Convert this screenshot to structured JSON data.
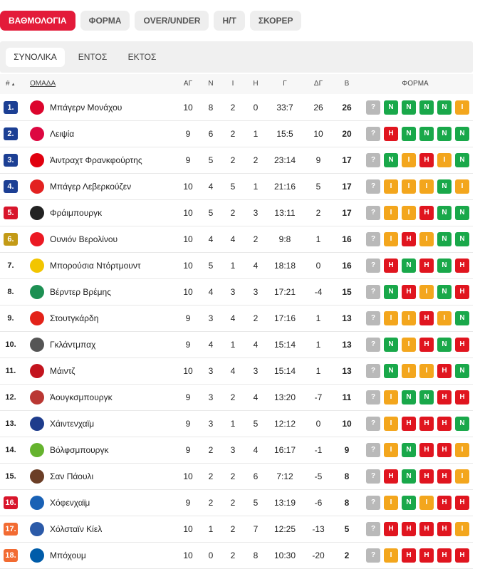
{
  "top_tabs": [
    "ΒΑΘΜΟΛΟΓΙΑ",
    "ΦΟΡΜΑ",
    "OVER/UNDER",
    "H/T",
    "ΣΚΟΡΕΡ"
  ],
  "sub_tabs": [
    "ΣΥΝΟΛΙΚΑ",
    "ΕΝΤΟΣ",
    "ΕΚΤΟΣ"
  ],
  "columns": {
    "pos": "#",
    "team": "ΟΜΑΔΑ",
    "played": "ΑΓ",
    "won": "Ν",
    "draw": "Ι",
    "lost": "Η",
    "goals": "Γ",
    "diff": "ΔΓ",
    "points": "Β",
    "form": "ΦΟΡΜΑ"
  },
  "sort_icon": "triangle-up-icon",
  "colors": {
    "blue": "#1c3f94",
    "red": "#d8152b",
    "gold": "#c39a16",
    "orange": "#f26b32",
    "win": "#19a84a",
    "draw": "#f3a61d",
    "loss": "#e0151f",
    "upcoming": "#b9b9b9"
  },
  "rows": [
    {
      "pos": "1.",
      "zone": "blue",
      "team": "Μπάγερν Μονάχου",
      "crest": "#dc052d",
      "ag": "10",
      "n": "8",
      "i": "2",
      "h": "0",
      "g": "33:7",
      "dg": "26",
      "b": "26",
      "form": [
        "?",
        "N",
        "N",
        "N",
        "N",
        "I"
      ]
    },
    {
      "pos": "2.",
      "zone": "blue",
      "team": "Λειψία",
      "crest": "#dd0741",
      "ag": "9",
      "n": "6",
      "i": "2",
      "h": "1",
      "g": "15:5",
      "dg": "10",
      "b": "20",
      "form": [
        "?",
        "H",
        "N",
        "N",
        "N",
        "N"
      ]
    },
    {
      "pos": "3.",
      "zone": "blue",
      "team": "Άιντραχτ Φρανκφούρτης",
      "crest": "#e1000f",
      "ag": "9",
      "n": "5",
      "i": "2",
      "h": "2",
      "g": "23:14",
      "dg": "9",
      "b": "17",
      "form": [
        "?",
        "N",
        "I",
        "H",
        "I",
        "N"
      ]
    },
    {
      "pos": "4.",
      "zone": "blue",
      "team": "Μπάγερ Λεβερκούζεν",
      "crest": "#e32221",
      "ag": "10",
      "n": "4",
      "i": "5",
      "h": "1",
      "g": "21:16",
      "dg": "5",
      "b": "17",
      "form": [
        "?",
        "I",
        "I",
        "I",
        "N",
        "I"
      ]
    },
    {
      "pos": "5.",
      "zone": "red",
      "team": "Φράιμπουργκ",
      "crest": "#222222",
      "ag": "10",
      "n": "5",
      "i": "2",
      "h": "3",
      "g": "13:11",
      "dg": "2",
      "b": "17",
      "form": [
        "?",
        "I",
        "I",
        "H",
        "N",
        "N"
      ]
    },
    {
      "pos": "6.",
      "zone": "gold",
      "team": "Ουνιόν Βερολίνου",
      "crest": "#eb1923",
      "ag": "10",
      "n": "4",
      "i": "4",
      "h": "2",
      "g": "9:8",
      "dg": "1",
      "b": "16",
      "form": [
        "?",
        "I",
        "H",
        "I",
        "N",
        "N"
      ]
    },
    {
      "pos": "7.",
      "zone": "none",
      "team": "Μπορούσια Ντόρτμουντ",
      "crest": "#f2c500",
      "ag": "10",
      "n": "5",
      "i": "1",
      "h": "4",
      "g": "18:18",
      "dg": "0",
      "b": "16",
      "form": [
        "?",
        "H",
        "N",
        "H",
        "N",
        "H"
      ]
    },
    {
      "pos": "8.",
      "zone": "none",
      "team": "Βέρντερ Βρέμης",
      "crest": "#1d9053",
      "ag": "10",
      "n": "4",
      "i": "3",
      "h": "3",
      "g": "17:21",
      "dg": "-4",
      "b": "15",
      "form": [
        "?",
        "N",
        "H",
        "I",
        "N",
        "H"
      ]
    },
    {
      "pos": "9.",
      "zone": "none",
      "team": "Στουτγκάρδη",
      "crest": "#e32219",
      "ag": "9",
      "n": "3",
      "i": "4",
      "h": "2",
      "g": "17:16",
      "dg": "1",
      "b": "13",
      "form": [
        "?",
        "I",
        "I",
        "H",
        "I",
        "N"
      ]
    },
    {
      "pos": "10.",
      "zone": "none",
      "team": "Γκλάντμπαχ",
      "crest": "#555555",
      "ag": "9",
      "n": "4",
      "i": "1",
      "h": "4",
      "g": "15:14",
      "dg": "1",
      "b": "13",
      "form": [
        "?",
        "N",
        "I",
        "H",
        "N",
        "H"
      ]
    },
    {
      "pos": "11.",
      "zone": "none",
      "team": "Μάιντζ",
      "crest": "#c3141e",
      "ag": "10",
      "n": "3",
      "i": "4",
      "h": "3",
      "g": "15:14",
      "dg": "1",
      "b": "13",
      "form": [
        "?",
        "N",
        "I",
        "I",
        "H",
        "N"
      ]
    },
    {
      "pos": "12.",
      "zone": "none",
      "team": "Άουγκσμπουργκ",
      "crest": "#ba3733",
      "ag": "9",
      "n": "3",
      "i": "2",
      "h": "4",
      "g": "13:20",
      "dg": "-7",
      "b": "11",
      "form": [
        "?",
        "I",
        "N",
        "N",
        "H",
        "H"
      ]
    },
    {
      "pos": "13.",
      "zone": "none",
      "team": "Χάιντενχαϊμ",
      "crest": "#1e3c8c",
      "ag": "9",
      "n": "3",
      "i": "1",
      "h": "5",
      "g": "12:12",
      "dg": "0",
      "b": "10",
      "form": [
        "?",
        "I",
        "H",
        "H",
        "H",
        "N"
      ]
    },
    {
      "pos": "14.",
      "zone": "none",
      "team": "Βόλφσμπουργκ",
      "crest": "#65b32e",
      "ag": "9",
      "n": "2",
      "i": "3",
      "h": "4",
      "g": "16:17",
      "dg": "-1",
      "b": "9",
      "form": [
        "?",
        "I",
        "N",
        "H",
        "H",
        "I"
      ]
    },
    {
      "pos": "15.",
      "zone": "none",
      "team": "Σαν Πάουλι",
      "crest": "#6b3e26",
      "ag": "10",
      "n": "2",
      "i": "2",
      "h": "6",
      "g": "7:12",
      "dg": "-5",
      "b": "8",
      "form": [
        "?",
        "H",
        "N",
        "H",
        "H",
        "I"
      ]
    },
    {
      "pos": "16.",
      "zone": "red",
      "team": "Χόφενχαϊμ",
      "crest": "#1961b5",
      "ag": "9",
      "n": "2",
      "i": "2",
      "h": "5",
      "g": "13:19",
      "dg": "-6",
      "b": "8",
      "form": [
        "?",
        "I",
        "N",
        "I",
        "H",
        "H"
      ]
    },
    {
      "pos": "17.",
      "zone": "orange",
      "team": "Χόλσταϊν Κίελ",
      "crest": "#2b5aa8",
      "ag": "10",
      "n": "1",
      "i": "2",
      "h": "7",
      "g": "12:25",
      "dg": "-13",
      "b": "5",
      "form": [
        "?",
        "H",
        "H",
        "H",
        "H",
        "I"
      ]
    },
    {
      "pos": "18.",
      "zone": "orange",
      "team": "Μπόχουμ",
      "crest": "#005ca9",
      "ag": "10",
      "n": "0",
      "i": "2",
      "h": "8",
      "g": "10:30",
      "dg": "-20",
      "b": "2",
      "form": [
        "?",
        "I",
        "H",
        "H",
        "H",
        "H"
      ]
    }
  ]
}
